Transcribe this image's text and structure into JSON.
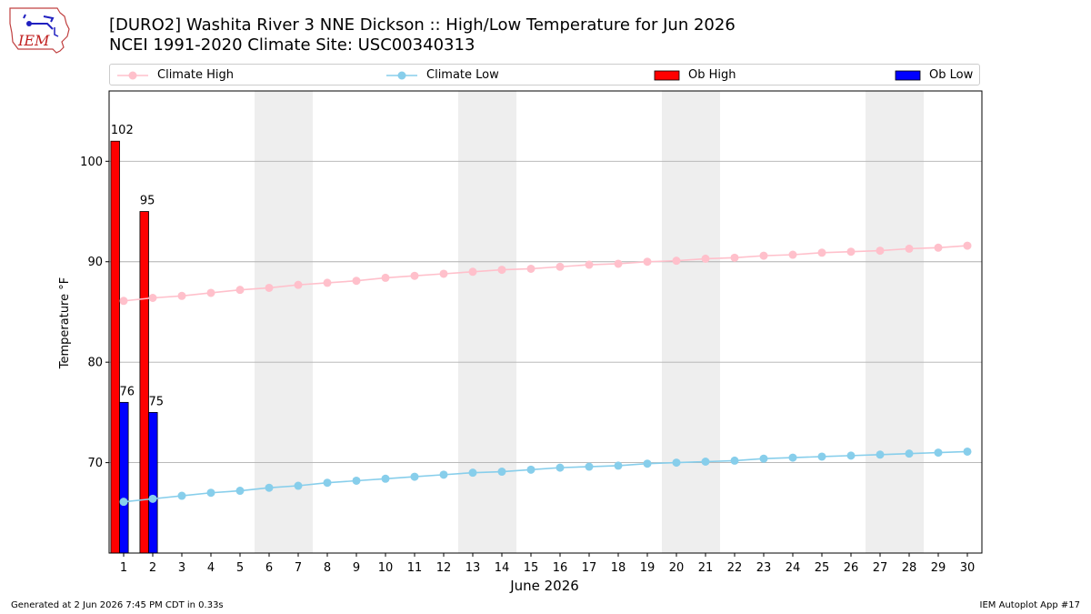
{
  "header": {
    "title_line1": "[DURO2] Washita River 3 NNE Dickson :: High/Low Temperature for Jun 2026",
    "title_line2": "NCEI 1991-2020 Climate Site: USC00340313"
  },
  "logo": {
    "text": "IEM",
    "icon": "iem-iowa-logo"
  },
  "footer": {
    "generated": "Generated at 2 Jun 2026 7:45 PM CDT in 0.33s",
    "app": "IEM Autoplot App #17"
  },
  "colors": {
    "climate_high": "#ffc0cb",
    "climate_low": "#87ceeb",
    "ob_high": "#ff0000",
    "ob_low": "#0000ff",
    "weekend_band": "#eeeeee",
    "grid": "#b0b0b0"
  },
  "chart_data": {
    "type": "bar",
    "title": "[DURO2] Washita River 3 NNE Dickson :: High/Low Temperature for Jun 2026",
    "subtitle": "NCEI 1991-2020 Climate Site: USC00340313",
    "xlabel": "June 2026",
    "ylabel": "Temperature °F",
    "xlim": [
      0.5,
      30.5
    ],
    "ylim": [
      61,
      107
    ],
    "yticks": [
      70,
      80,
      90,
      100
    ],
    "grid": "horizontal",
    "legend_position": "top",
    "x": [
      1,
      2,
      3,
      4,
      5,
      6,
      7,
      8,
      9,
      10,
      11,
      12,
      13,
      14,
      15,
      16,
      17,
      18,
      19,
      20,
      21,
      22,
      23,
      24,
      25,
      26,
      27,
      28,
      29,
      30
    ],
    "shaded_days": [
      [
        6,
        7
      ],
      [
        13,
        14
      ],
      [
        20,
        21
      ],
      [
        27,
        28
      ]
    ],
    "series": [
      {
        "name": "Climate High",
        "kind": "line",
        "values": [
          86.1,
          86.4,
          86.6,
          86.9,
          87.2,
          87.4,
          87.7,
          87.9,
          88.1,
          88.4,
          88.6,
          88.8,
          89.0,
          89.2,
          89.3,
          89.5,
          89.7,
          89.8,
          90.0,
          90.1,
          90.3,
          90.4,
          90.6,
          90.7,
          90.9,
          91.0,
          91.1,
          91.3,
          91.4,
          91.6
        ]
      },
      {
        "name": "Climate Low",
        "kind": "line",
        "values": [
          66.1,
          66.4,
          66.7,
          67.0,
          67.2,
          67.5,
          67.7,
          68.0,
          68.2,
          68.4,
          68.6,
          68.8,
          69.0,
          69.1,
          69.3,
          69.5,
          69.6,
          69.7,
          69.9,
          70.0,
          70.1,
          70.2,
          70.4,
          70.5,
          70.6,
          70.7,
          70.8,
          70.9,
          71.0,
          71.1
        ]
      },
      {
        "name": "Ob High",
        "kind": "bar",
        "x": [
          1,
          2
        ],
        "values": [
          102,
          95
        ],
        "labels": [
          "102",
          "95"
        ]
      },
      {
        "name": "Ob Low",
        "kind": "bar",
        "x": [
          1,
          2
        ],
        "values": [
          76,
          75
        ],
        "labels": [
          "76",
          "75"
        ]
      }
    ]
  }
}
